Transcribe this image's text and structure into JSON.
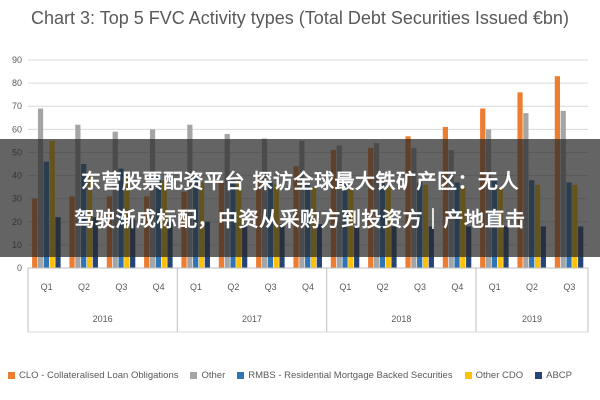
{
  "chart_data": {
    "type": "bar",
    "title": "Chart 3: Top 5 FVC Activity types (Total Debt Securities Issued €bn)",
    "ylim": [
      0,
      90
    ],
    "yticks": [
      0,
      10,
      20,
      30,
      40,
      50,
      60,
      70,
      80,
      90
    ],
    "grid": true,
    "legend_position": "bottom",
    "categories": [
      "Q1",
      "Q2",
      "Q3",
      "Q4",
      "Q1",
      "Q2",
      "Q3",
      "Q4",
      "Q1",
      "Q2",
      "Q3",
      "Q4",
      "Q1",
      "Q2",
      "Q3"
    ],
    "groups": [
      {
        "label": "2016",
        "count": 4
      },
      {
        "label": "2017",
        "count": 4
      },
      {
        "label": "2018",
        "count": 4
      },
      {
        "label": "2019",
        "count": 3
      }
    ],
    "series": [
      {
        "name": "CLO - Collateralised Loan Obligations",
        "color": "#ED7D31",
        "values": [
          30,
          31,
          31,
          31,
          33,
          37,
          40,
          44,
          51,
          52,
          57,
          61,
          69,
          76,
          83
        ]
      },
      {
        "name": "Other",
        "color": "#A5A5A5",
        "values": [
          69,
          62,
          59,
          60,
          62,
          58,
          56,
          55,
          53,
          54,
          52,
          51,
          60,
          67,
          68
        ]
      },
      {
        "name": "RMBS - Residential Mortgage Backed Securities",
        "color": "#2E75B6",
        "values": [
          46,
          45,
          43,
          41,
          40,
          39,
          37,
          37,
          38,
          37,
          37,
          37,
          38,
          38,
          37
        ]
      },
      {
        "name": "Other CDO",
        "color": "#FFC000",
        "values": [
          55,
          40,
          40,
          38,
          37,
          38,
          36,
          35,
          35,
          35,
          36,
          35,
          35,
          36,
          36
        ]
      },
      {
        "name": "ABCP",
        "color": "#264478",
        "values": [
          22,
          22,
          21,
          20,
          20,
          19,
          19,
          19,
          18,
          18,
          18,
          18,
          18,
          18,
          18
        ]
      }
    ]
  },
  "overlay": {
    "line1": "东营股票配资平台 探访全球最大铁矿产区：无人",
    "line2": "驾驶渐成标配，中资从采购方到投资方｜产地直击"
  }
}
